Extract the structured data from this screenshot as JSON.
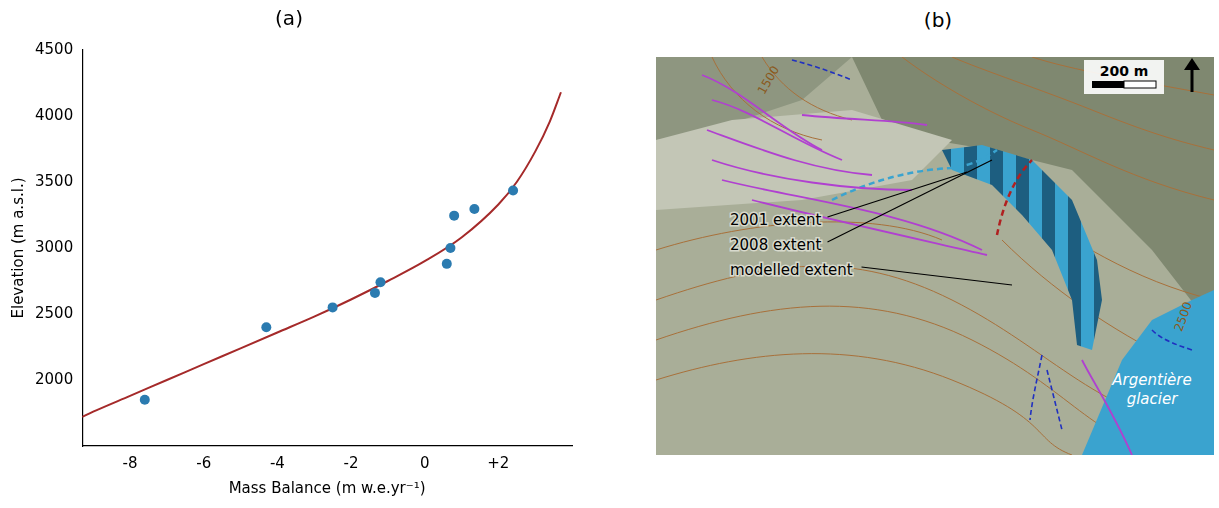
{
  "chart_data": {
    "type": "scatter",
    "title": "(a)",
    "x_label": "Mass Balance (m w.e.yr⁻¹)",
    "y_label": "Elevation (m a.s.l.)",
    "xlim": [
      -9.3,
      4.0
    ],
    "ylim": [
      1500,
      4500
    ],
    "xticks": [
      -8,
      -6,
      -4,
      -2,
      0,
      {
        "value": 2,
        "label": "+2"
      }
    ],
    "yticks": [
      2000,
      2500,
      3000,
      3500,
      4000,
      4500
    ],
    "grid": false,
    "series": [
      {
        "type": "scatter",
        "color": "#2b7bb0",
        "marker": "circle",
        "x": [
          -7.6,
          -4.3,
          -2.5,
          -1.35,
          -1.2,
          0.6,
          0.7,
          0.8,
          1.35,
          2.4
        ],
        "values": [
          1850,
          2400,
          2550,
          2660,
          2740,
          2880,
          3000,
          3245,
          3295,
          3435
        ]
      },
      {
        "type": "line",
        "color": "#a52a2a",
        "line_style": "solid",
        "x": [
          -9.3,
          -9,
          -8,
          -7,
          -6,
          -5,
          -4,
          -3,
          -2,
          -1,
          0,
          1,
          2,
          2.5,
          3,
          3.4,
          3.7
        ],
        "values": [
          1720,
          1760,
          1880,
          2000,
          2120,
          2240,
          2360,
          2480,
          2610,
          2750,
          2900,
          3080,
          3330,
          3500,
          3730,
          3960,
          4180
        ]
      }
    ]
  },
  "panel_b": {
    "title": "(b)",
    "contour_labels": [
      "1500",
      "2500"
    ],
    "extent_labels": [
      "2001 extent",
      "2008 extent",
      "modelled extent"
    ],
    "glacier_label": "Argentière glacier",
    "scale_label": "200 m"
  }
}
